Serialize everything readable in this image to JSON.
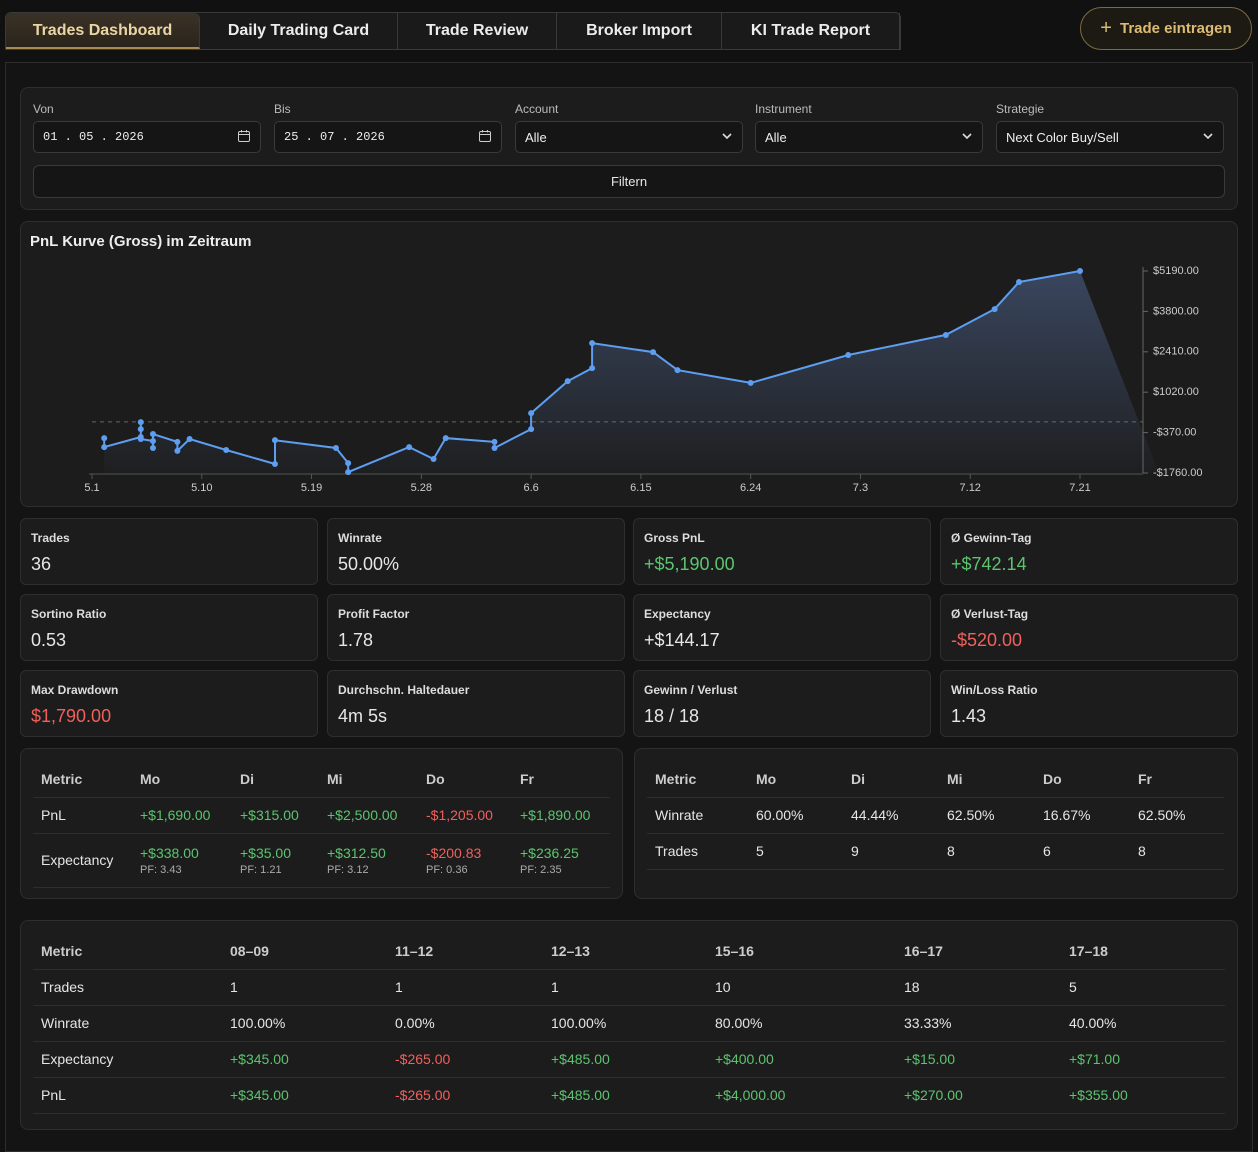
{
  "tabs": [
    "Trades Dashboard",
    "Daily Trading Card",
    "Trade Review",
    "Broker Import",
    "KI Trade Report"
  ],
  "active_tab": 0,
  "action_button": "Trade eintragen",
  "filters": [
    {
      "label": "Von",
      "value": "01 . 05 . 2026",
      "kind": "date"
    },
    {
      "label": "Bis",
      "value": "25 . 07 . 2026",
      "kind": "date"
    },
    {
      "label": "Account",
      "value": "Alle",
      "kind": "select"
    },
    {
      "label": "Instrument",
      "value": "Alle",
      "kind": "select"
    },
    {
      "label": "Strategie",
      "value": "Next Color Buy/Sell",
      "kind": "select"
    }
  ],
  "filter_button": "Filtern",
  "chart_data": {
    "type": "line",
    "title": "PnL Kurve (Gross) im Zeitraum",
    "color": "#5e9ef0",
    "x": [
      "5.2",
      "5.2",
      "5.5",
      "5.5",
      "5.5",
      "5.5",
      "5.6",
      "5.6",
      "5.6",
      "5.8",
      "5.8",
      "5.9",
      "5.12",
      "5.16",
      "5.16",
      "5.21",
      "5.22",
      "5.22",
      "5.27",
      "5.29",
      "5.30",
      "6.3",
      "6.3",
      "6.6",
      "6.6",
      "6.9",
      "6.11",
      "6.11",
      "6.16",
      "6.18",
      "6.24",
      "7.2",
      "7.10",
      "7.14",
      "7.16",
      "7.21"
    ],
    "values": [
      -560,
      -870,
      -520,
      -10,
      -250,
      -590,
      -660,
      -900,
      -420,
      -690,
      -1000,
      -590,
      -970,
      -1450,
      -630,
      -900,
      -1420,
      -1730,
      -870,
      -1280,
      -560,
      -690,
      -900,
      -250,
      300,
      1400,
      1850,
      2710,
      2400,
      1780,
      1340,
      2300,
      2990,
      3880,
      4810,
      5190
    ],
    "xlim": [
      "5.1",
      "7.26"
    ],
    "xticks": [
      "5.1",
      "5.10",
      "5.19",
      "5.28",
      "6.6",
      "6.15",
      "6.24",
      "7.3",
      "7.12",
      "7.21"
    ],
    "ylim": [
      -1760,
      5190
    ],
    "yticks": [
      {
        "value": -1760,
        "label": "-$1760.00"
      },
      {
        "value": -370,
        "label": "-$370.00"
      },
      {
        "value": 1020,
        "label": "$1020.00"
      },
      {
        "value": 2410,
        "label": "$2410.00"
      },
      {
        "value": 3800,
        "label": "$3800.00"
      },
      {
        "value": 5190,
        "label": "$5190.00"
      }
    ],
    "zero_line": true
  },
  "stats": [
    {
      "label": "Trades",
      "value": "36",
      "tone": "neutral"
    },
    {
      "label": "Winrate",
      "value": "50.00%",
      "tone": "neutral"
    },
    {
      "label": "Gross PnL",
      "value": "+$5,190.00",
      "tone": "positive"
    },
    {
      "label": "Ø Gewinn-Tag",
      "value": "+$742.14",
      "tone": "positive"
    },
    {
      "label": "Sortino Ratio",
      "value": "0.53",
      "tone": "neutral"
    },
    {
      "label": "Profit Factor",
      "value": "1.78",
      "tone": "neutral"
    },
    {
      "label": "Expectancy",
      "value": "+$144.17",
      "tone": "neutral"
    },
    {
      "label": "Ø Verlust-Tag",
      "value": "-$520.00",
      "tone": "negative"
    },
    {
      "label": "Max Drawdown",
      "value": "$1,790.00",
      "tone": "negative"
    },
    {
      "label": "Durchschn. Haltedauer",
      "value": "4m 5s",
      "tone": "neutral"
    },
    {
      "label": "Gewinn / Verlust",
      "value": "18 / 18",
      "tone": "neutral"
    },
    {
      "label": "Win/Loss Ratio",
      "value": "1.43",
      "tone": "neutral"
    }
  ],
  "weekday_pnl_table": {
    "columns": [
      "Metric",
      "Mo",
      "Di",
      "Mi",
      "Do",
      "Fr"
    ],
    "rows": [
      [
        "PnL",
        "+$1,690.00",
        "+$315.00",
        "+$2,500.00",
        "-$1,205.00",
        "+$1,890.00"
      ],
      [
        "Expectancy",
        {
          "text": "+$338.00",
          "sub": "PF: 3.43"
        },
        {
          "text": "+$35.00",
          "sub": "PF: 1.21"
        },
        {
          "text": "+$312.50",
          "sub": "PF: 3.12"
        },
        {
          "text": "-$200.83",
          "sub": "PF: 0.36"
        },
        {
          "text": "+$236.25",
          "sub": "PF: 2.35"
        }
      ]
    ]
  },
  "weekday_winrate_table": {
    "columns": [
      "Metric",
      "Mo",
      "Di",
      "Mi",
      "Do",
      "Fr"
    ],
    "rows": [
      [
        "Winrate",
        "60.00%",
        "44.44%",
        "62.50%",
        "16.67%",
        "62.50%"
      ],
      [
        "Trades",
        "5",
        "9",
        "8",
        "6",
        "8"
      ]
    ]
  },
  "hour_table": {
    "columns": [
      "Metric",
      "08–09",
      "11–12",
      "12–13",
      "15–16",
      "16–17",
      "17–18"
    ],
    "rows": [
      [
        "Trades",
        "1",
        "1",
        "1",
        "10",
        "18",
        "5"
      ],
      [
        "Winrate",
        "100.00%",
        "0.00%",
        "100.00%",
        "80.00%",
        "33.33%",
        "40.00%"
      ],
      [
        "Expectancy",
        "+$345.00",
        "-$265.00",
        "+$485.00",
        "+$400.00",
        "+$15.00",
        "+$71.00"
      ],
      [
        "PnL",
        "+$345.00",
        "-$265.00",
        "+$485.00",
        "+$4,000.00",
        "+$270.00",
        "+$355.00"
      ]
    ]
  }
}
